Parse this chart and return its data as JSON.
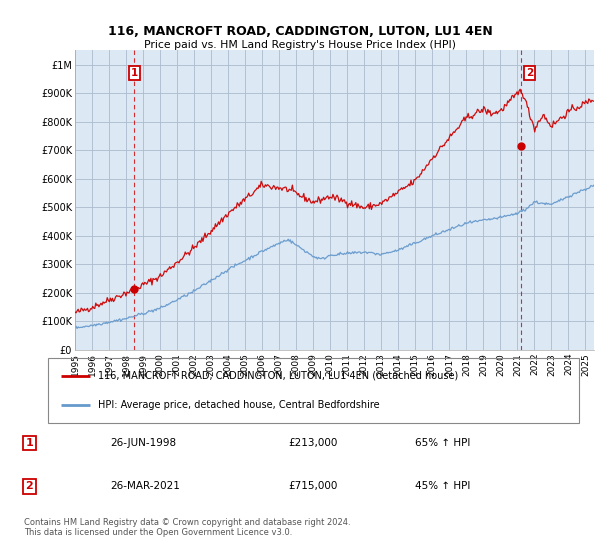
{
  "title": "116, MANCROFT ROAD, CADDINGTON, LUTON, LU1 4EN",
  "subtitle": "Price paid vs. HM Land Registry's House Price Index (HPI)",
  "sale1_date": 1998.49,
  "sale1_price": 213000,
  "sale1_label": "1",
  "sale1_display": "26-JUN-1998",
  "sale1_pct": "65% ↑ HPI",
  "sale2_date": 2021.23,
  "sale2_price": 715000,
  "sale2_label": "2",
  "sale2_display": "26-MAR-2021",
  "sale2_pct": "45% ↑ HPI",
  "red_color": "#cc0000",
  "blue_color": "#6699cc",
  "chart_bg": "#dce9f5",
  "marker_color": "#cc0000",
  "annotation_box_color": "#cc0000",
  "background_color": "#ffffff",
  "grid_color": "#aabbcc",
  "legend_line1": "116, MANCROFT ROAD, CADDINGTON, LUTON, LU1 4EN (detached house)",
  "legend_line2": "HPI: Average price, detached house, Central Bedfordshire",
  "footer": "Contains HM Land Registry data © Crown copyright and database right 2024.\nThis data is licensed under the Open Government Licence v3.0.",
  "ylim": [
    0,
    1050000
  ],
  "xlim_start": 1995.0,
  "xlim_end": 2025.5,
  "yticks": [
    0,
    100000,
    200000,
    300000,
    400000,
    500000,
    600000,
    700000,
    800000,
    900000,
    1000000
  ],
  "ytick_labels": [
    "£0",
    "£100K",
    "£200K",
    "£300K",
    "£400K",
    "£500K",
    "£600K",
    "£700K",
    "£800K",
    "£900K",
    "£1M"
  ]
}
